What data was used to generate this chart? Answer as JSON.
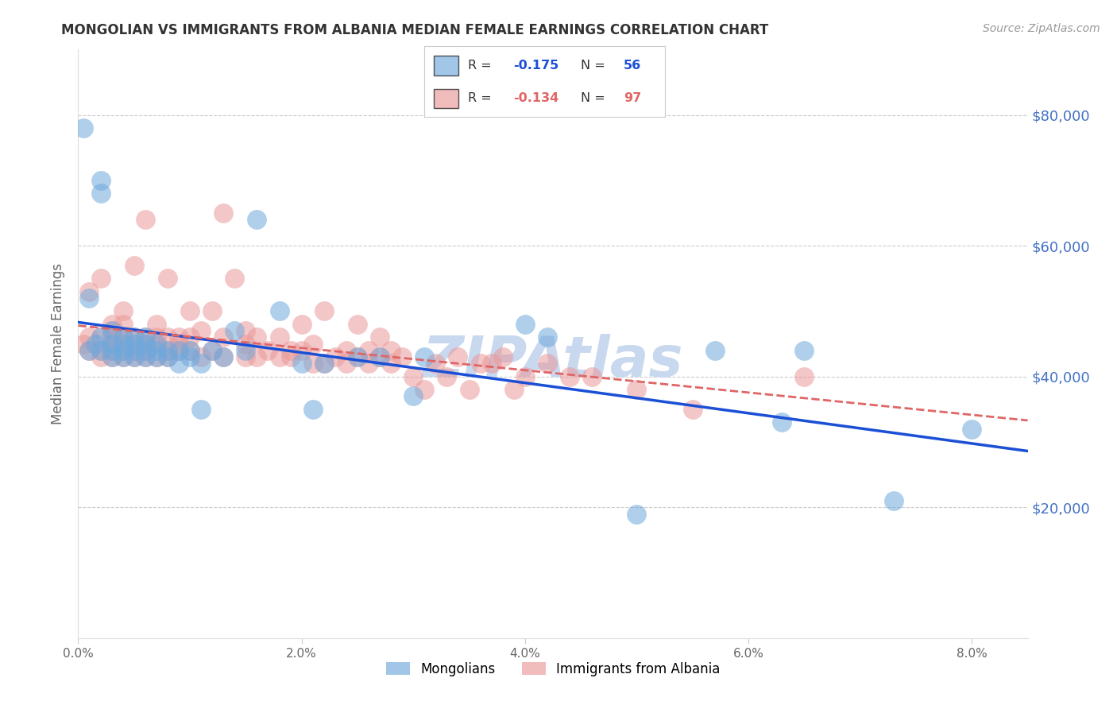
{
  "title": "MONGOLIAN VS IMMIGRANTS FROM ALBANIA MEDIAN FEMALE EARNINGS CORRELATION CHART",
  "source": "Source: ZipAtlas.com",
  "ylabel": "Median Female Earnings",
  "xlabel_ticks": [
    "0.0%",
    "2.0%",
    "4.0%",
    "6.0%",
    "8.0%"
  ],
  "xlabel_vals": [
    0.0,
    0.02,
    0.04,
    0.06,
    0.08
  ],
  "ytick_labels": [
    "$20,000",
    "$40,000",
    "$60,000",
    "$80,000"
  ],
  "ytick_vals": [
    20000,
    40000,
    60000,
    80000
  ],
  "mongolian_color": "#6fa8dc",
  "albania_color": "#ea9999",
  "trend_mongolian_color": "#1a4fd6",
  "trend_albania_color": "#e06666",
  "watermark_color": "#c8d8ef",
  "xlim": [
    0.0,
    0.085
  ],
  "ylim": [
    0,
    90000
  ],
  "mongolian_x": [
    0.0005,
    0.001,
    0.001,
    0.0015,
    0.002,
    0.002,
    0.002,
    0.002,
    0.003,
    0.003,
    0.003,
    0.003,
    0.004,
    0.004,
    0.004,
    0.004,
    0.005,
    0.005,
    0.005,
    0.005,
    0.006,
    0.006,
    0.006,
    0.006,
    0.007,
    0.007,
    0.007,
    0.008,
    0.008,
    0.009,
    0.009,
    0.01,
    0.01,
    0.011,
    0.011,
    0.012,
    0.013,
    0.014,
    0.015,
    0.016,
    0.018,
    0.02,
    0.021,
    0.022,
    0.025,
    0.027,
    0.03,
    0.031,
    0.04,
    0.042,
    0.05,
    0.057,
    0.063,
    0.065,
    0.073,
    0.08
  ],
  "mongolian_y": [
    78000,
    44000,
    52000,
    45000,
    68000,
    70000,
    44000,
    46000,
    43000,
    45000,
    47000,
    44000,
    43000,
    46000,
    45000,
    44000,
    44000,
    46000,
    43000,
    45000,
    43000,
    45000,
    46000,
    44000,
    44000,
    43000,
    45000,
    43000,
    44000,
    44000,
    42000,
    43000,
    44000,
    35000,
    42000,
    44000,
    43000,
    47000,
    44000,
    64000,
    50000,
    42000,
    35000,
    42000,
    43000,
    43000,
    37000,
    43000,
    48000,
    46000,
    19000,
    44000,
    33000,
    44000,
    21000,
    32000
  ],
  "albania_x": [
    0.0005,
    0.001,
    0.001,
    0.001,
    0.002,
    0.002,
    0.002,
    0.002,
    0.003,
    0.003,
    0.003,
    0.003,
    0.003,
    0.003,
    0.004,
    0.004,
    0.004,
    0.004,
    0.004,
    0.004,
    0.005,
    0.005,
    0.005,
    0.005,
    0.005,
    0.006,
    0.006,
    0.006,
    0.006,
    0.006,
    0.007,
    0.007,
    0.007,
    0.007,
    0.008,
    0.008,
    0.008,
    0.008,
    0.009,
    0.009,
    0.009,
    0.01,
    0.01,
    0.01,
    0.011,
    0.011,
    0.012,
    0.012,
    0.013,
    0.013,
    0.013,
    0.014,
    0.015,
    0.015,
    0.015,
    0.016,
    0.016,
    0.017,
    0.018,
    0.018,
    0.019,
    0.019,
    0.02,
    0.02,
    0.021,
    0.021,
    0.022,
    0.022,
    0.023,
    0.024,
    0.024,
    0.025,
    0.025,
    0.026,
    0.026,
    0.027,
    0.027,
    0.028,
    0.028,
    0.029,
    0.03,
    0.031,
    0.032,
    0.033,
    0.034,
    0.035,
    0.036,
    0.037,
    0.038,
    0.039,
    0.04,
    0.042,
    0.044,
    0.046,
    0.05,
    0.055,
    0.065
  ],
  "albania_y": [
    45000,
    46000,
    44000,
    53000,
    44000,
    46000,
    43000,
    55000,
    44000,
    46000,
    48000,
    43000,
    45000,
    47000,
    43000,
    45000,
    44000,
    46000,
    48000,
    50000,
    44000,
    46000,
    43000,
    45000,
    57000,
    43000,
    45000,
    46000,
    44000,
    64000,
    43000,
    46000,
    45000,
    48000,
    44000,
    43000,
    46000,
    55000,
    45000,
    44000,
    46000,
    44000,
    46000,
    50000,
    43000,
    47000,
    44000,
    50000,
    43000,
    46000,
    65000,
    55000,
    43000,
    45000,
    47000,
    43000,
    46000,
    44000,
    43000,
    46000,
    44000,
    43000,
    44000,
    48000,
    42000,
    45000,
    42000,
    50000,
    43000,
    42000,
    44000,
    43000,
    48000,
    44000,
    42000,
    43000,
    46000,
    42000,
    44000,
    43000,
    40000,
    38000,
    42000,
    40000,
    43000,
    38000,
    42000,
    42000,
    43000,
    38000,
    40000,
    42000,
    40000,
    40000,
    38000,
    35000,
    40000
  ]
}
